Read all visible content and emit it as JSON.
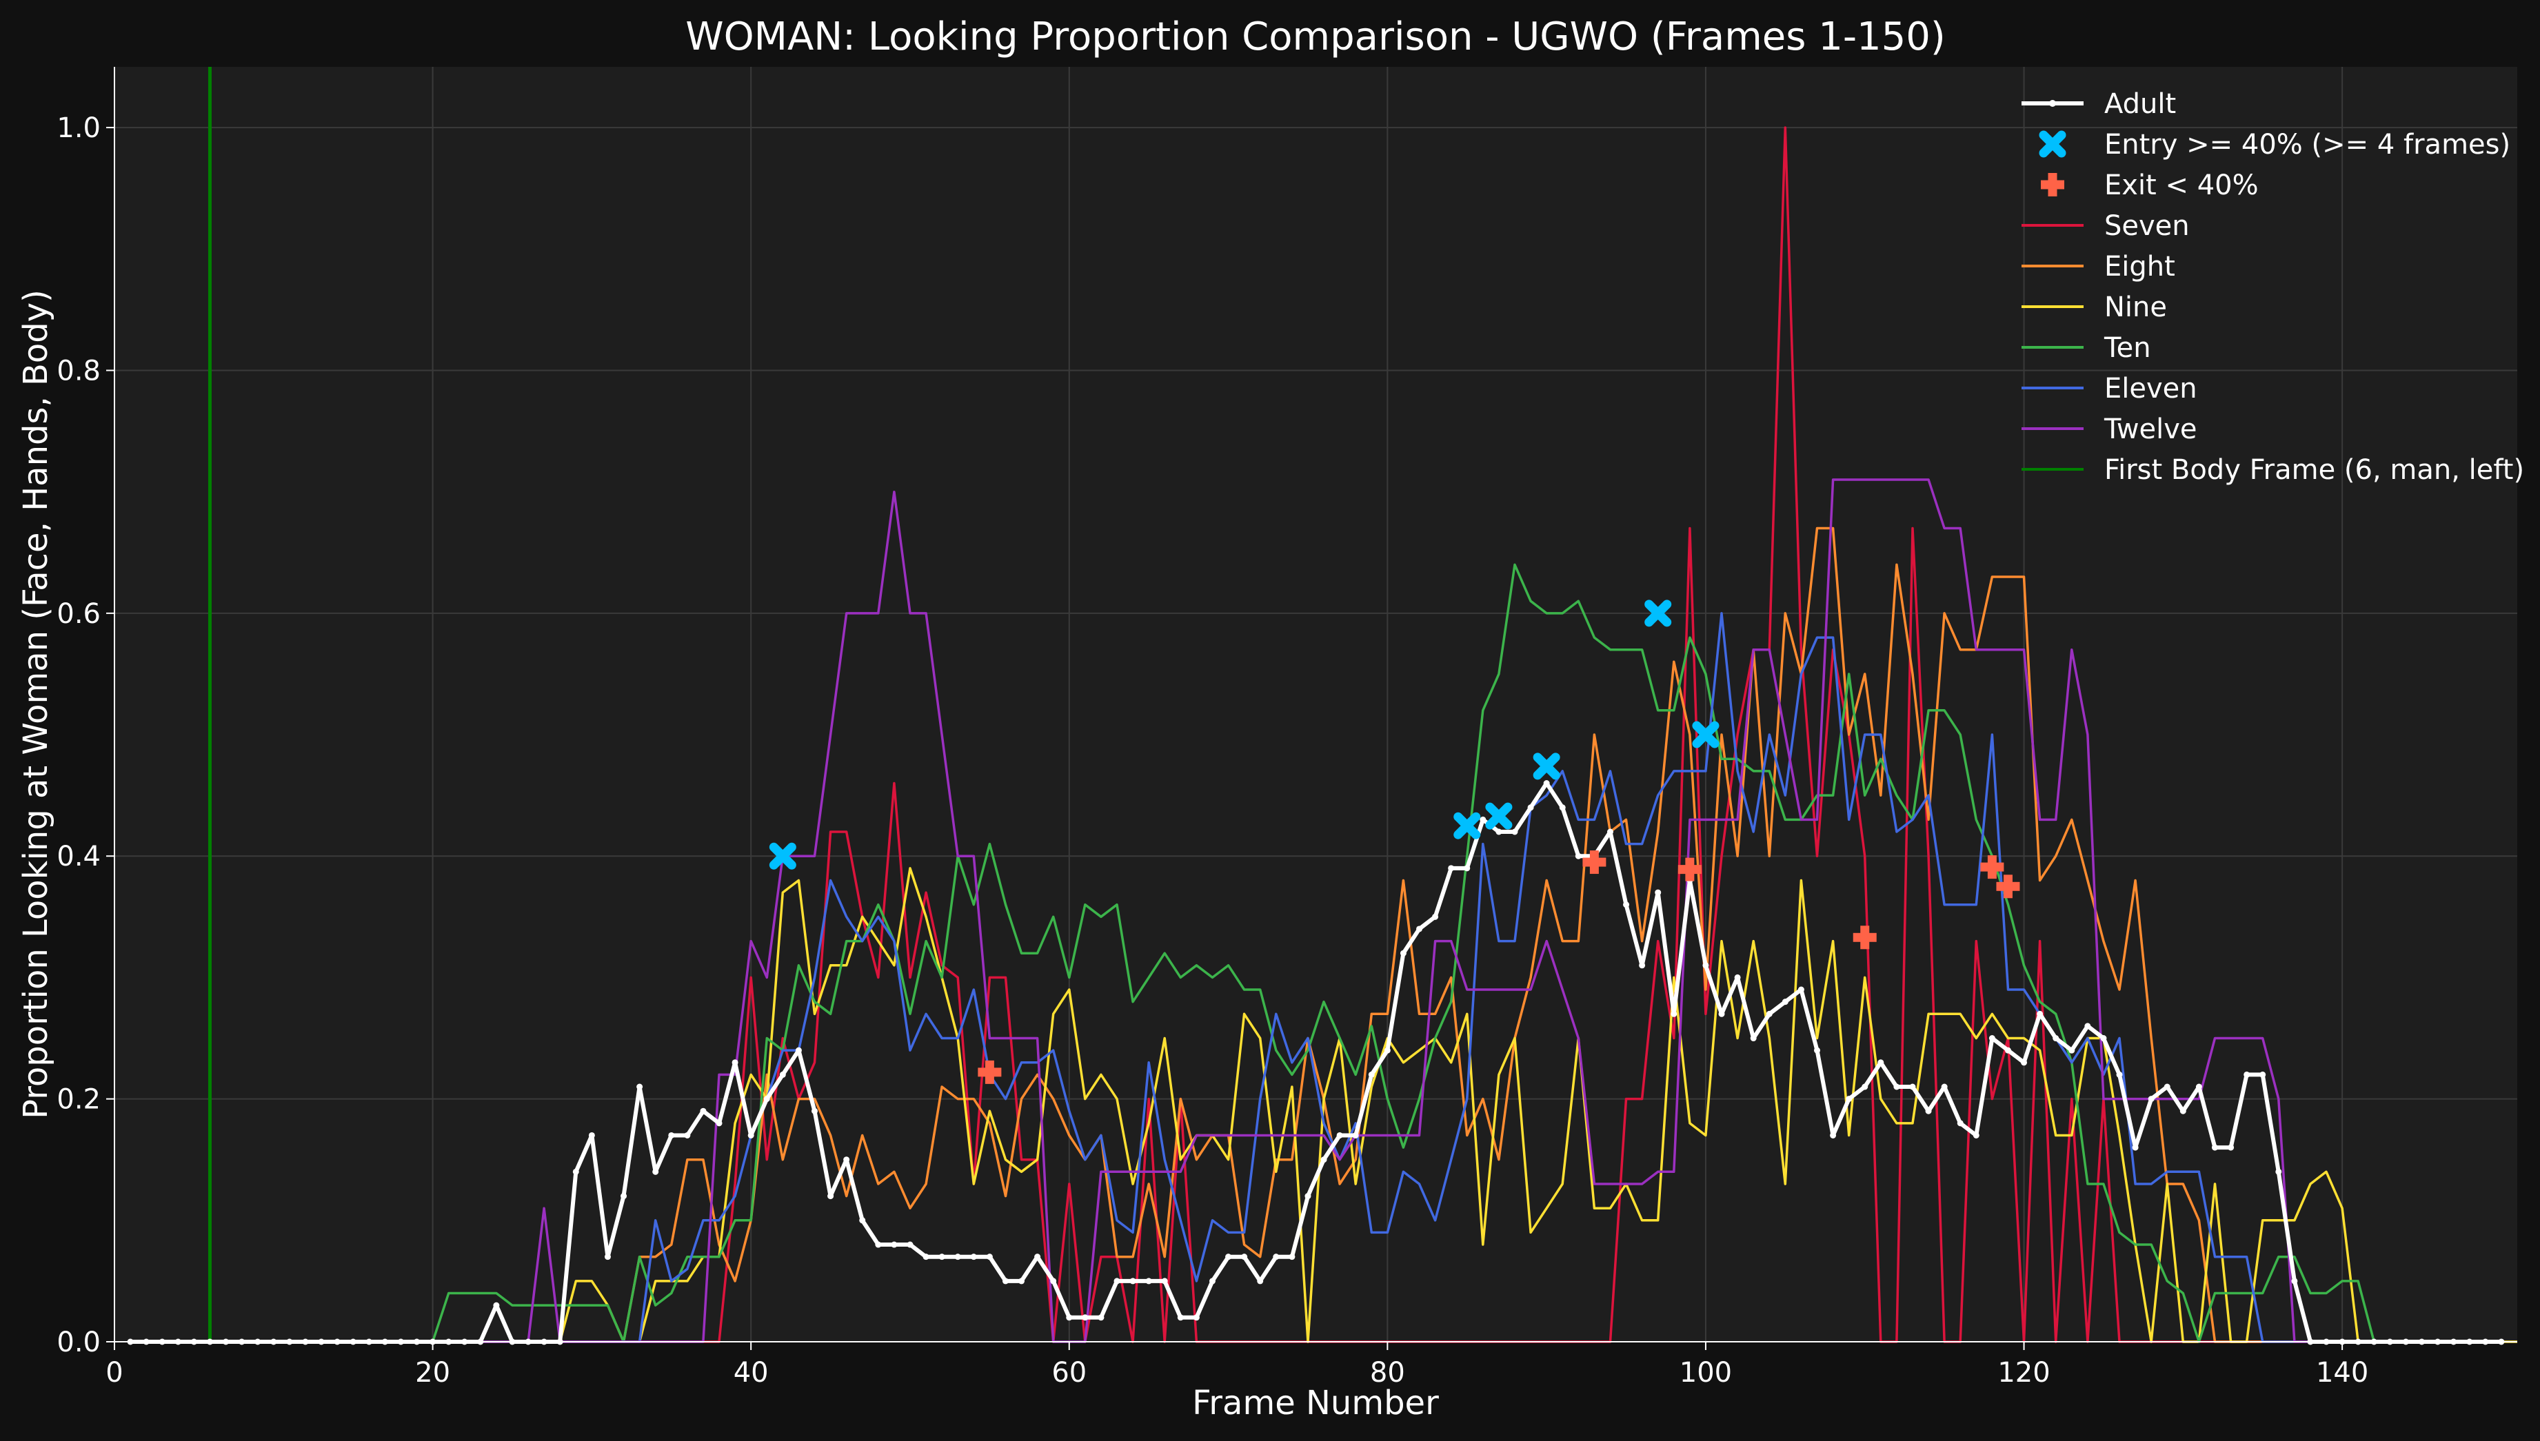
{
  "chart_data": {
    "type": "line",
    "title": "WOMAN: Looking Proportion Comparison - UGWO (Frames 1-150)",
    "xlabel": "Frame Number",
    "ylabel": "Proportion Looking at Woman (Face, Hands, Body)",
    "xlim": [
      0,
      151
    ],
    "ylim": [
      0,
      1.05
    ],
    "xticks": [
      0,
      20,
      40,
      60,
      80,
      100,
      120,
      140
    ],
    "xtick_labels": [
      "0",
      "20",
      "40",
      "60",
      "80",
      "100",
      "120",
      "140"
    ],
    "yticks": [
      0,
      0.2,
      0.4,
      0.6,
      0.8,
      1.0
    ],
    "ytick_labels": [
      "0.0",
      "0.2",
      "0.4",
      "0.6",
      "0.8",
      "1.0"
    ],
    "grid": true,
    "legend_position": "top-right",
    "x_start": 1,
    "background": "#1e1e1e",
    "series": [
      {
        "name": "Seven",
        "color": "#dc143c",
        "values": [
          0,
          0,
          0,
          0,
          0,
          0,
          0,
          0,
          0,
          0,
          0,
          0,
          0,
          0,
          0,
          0,
          0,
          0,
          0,
          0,
          0,
          0,
          0,
          0,
          0,
          0,
          0,
          0,
          0,
          0,
          0,
          0,
          0,
          0,
          0,
          0,
          0,
          0,
          0.13,
          0.3,
          0.15,
          0.25,
          0.2,
          0.23,
          0.42,
          0.42,
          0.35,
          0.3,
          0.46,
          0.3,
          0.37,
          0.31,
          0.3,
          0.13,
          0.3,
          0.3,
          0.15,
          0.15,
          0,
          0.13,
          0,
          0.07,
          0.07,
          0,
          0.2,
          0,
          0.2,
          0,
          0,
          0,
          0,
          0,
          0,
          0,
          0,
          0,
          0,
          0,
          0,
          0,
          0,
          0,
          0,
          0,
          0,
          0,
          0,
          0,
          0,
          0,
          0,
          0,
          0,
          0,
          0.2,
          0.2,
          0.33,
          0.25,
          0.67,
          0.27,
          0.4,
          0.5,
          0.57,
          0.57,
          1.0,
          0.57,
          0.4,
          0.57,
          0.5,
          0.4,
          0,
          0,
          0.67,
          0.4,
          0,
          0,
          0.33,
          0.2,
          0.25,
          0,
          0.33,
          0,
          0.2,
          0,
          0.2,
          0,
          0,
          0,
          0,
          0,
          0,
          0,
          0,
          0,
          0,
          0,
          0,
          0,
          0,
          0,
          0,
          0,
          0,
          0,
          0,
          0
        ]
      },
      {
        "name": "Eight",
        "color": "#ff8c30",
        "values": [
          0,
          0,
          0,
          0,
          0,
          0,
          0,
          0,
          0,
          0,
          0,
          0,
          0,
          0,
          0,
          0,
          0,
          0,
          0,
          0,
          0,
          0,
          0,
          0,
          0,
          0,
          0,
          0,
          0,
          0,
          0,
          0,
          0.07,
          0.07,
          0.08,
          0.15,
          0.15,
          0.08,
          0.05,
          0.1,
          0.22,
          0.15,
          0.2,
          0.2,
          0.17,
          0.12,
          0.17,
          0.13,
          0.14,
          0.11,
          0.13,
          0.21,
          0.2,
          0.2,
          0.18,
          0.12,
          0.2,
          0.22,
          0.2,
          0.17,
          0.15,
          0.17,
          0.07,
          0.07,
          0.13,
          0.07,
          0.2,
          0.15,
          0.17,
          0.17,
          0.08,
          0.07,
          0.15,
          0.15,
          0.25,
          0.2,
          0.13,
          0.15,
          0.27,
          0.27,
          0.38,
          0.27,
          0.27,
          0.3,
          0.17,
          0.2,
          0.15,
          0.25,
          0.3,
          0.38,
          0.33,
          0.33,
          0.5,
          0.42,
          0.43,
          0.33,
          0.42,
          0.56,
          0.5,
          0.29,
          0.5,
          0.4,
          0.57,
          0.4,
          0.6,
          0.55,
          0.67,
          0.67,
          0.5,
          0.55,
          0.45,
          0.64,
          0.55,
          0.43,
          0.6,
          0.57,
          0.57,
          0.63,
          0.63,
          0.63,
          0.38,
          0.4,
          0.43,
          0.38,
          0.33,
          0.29,
          0.38,
          0.25,
          0.13,
          0.13,
          0.1,
          0,
          0,
          0,
          0,
          0,
          0,
          0,
          0,
          0,
          0,
          0,
          0,
          0,
          0,
          0,
          0,
          0
        ]
      },
      {
        "name": "Nine",
        "color": "#ffe033",
        "values": [
          0,
          0,
          0,
          0,
          0,
          0,
          0,
          0,
          0,
          0,
          0,
          0,
          0,
          0,
          0,
          0,
          0,
          0,
          0,
          0,
          0,
          0,
          0,
          0,
          0,
          0,
          0,
          0,
          0.05,
          0.05,
          0.03,
          0,
          0,
          0.05,
          0.05,
          0.05,
          0.07,
          0.07,
          0.18,
          0.22,
          0.2,
          0.37,
          0.38,
          0.27,
          0.31,
          0.31,
          0.35,
          0.33,
          0.31,
          0.39,
          0.35,
          0.3,
          0.25,
          0.13,
          0.19,
          0.15,
          0.14,
          0.15,
          0.27,
          0.29,
          0.2,
          0.22,
          0.2,
          0.13,
          0.18,
          0.25,
          0.15,
          0.17,
          0.17,
          0.15,
          0.27,
          0.25,
          0.14,
          0.21,
          0,
          0.2,
          0.25,
          0.13,
          0.21,
          0.25,
          0.23,
          0.24,
          0.25,
          0.23,
          0.27,
          0.08,
          0.22,
          0.25,
          0.09,
          0.11,
          0.13,
          0.25,
          0.11,
          0.11,
          0.13,
          0.1,
          0.1,
          0.3,
          0.18,
          0.17,
          0.33,
          0.25,
          0.33,
          0.25,
          0.13,
          0.38,
          0.25,
          0.33,
          0.17,
          0.3,
          0.2,
          0.18,
          0.18,
          0.27,
          0.27,
          0.27,
          0.25,
          0.27,
          0.25,
          0.25,
          0.24,
          0.17,
          0.17,
          0.25,
          0.25,
          0.17,
          0.08,
          0,
          0.13,
          0,
          0,
          0.13,
          0,
          0,
          0.1,
          0.1,
          0.1,
          0.13,
          0.14,
          0.11,
          0,
          0,
          0,
          0,
          0,
          0,
          0,
          0,
          0,
          0,
          0
        ]
      },
      {
        "name": "Ten",
        "color": "#3cb44b",
        "values": [
          0,
          0,
          0,
          0,
          0,
          0,
          0,
          0,
          0,
          0,
          0,
          0,
          0,
          0,
          0,
          0,
          0,
          0,
          0,
          0,
          0.04,
          0.04,
          0.04,
          0.04,
          0.03,
          0.03,
          0.03,
          0.03,
          0.03,
          0.03,
          0.03,
          0,
          0.07,
          0.03,
          0.04,
          0.07,
          0.07,
          0.07,
          0.1,
          0.1,
          0.25,
          0.24,
          0.31,
          0.28,
          0.27,
          0.33,
          0.33,
          0.36,
          0.33,
          0.27,
          0.33,
          0.3,
          0.4,
          0.36,
          0.41,
          0.36,
          0.32,
          0.32,
          0.35,
          0.3,
          0.36,
          0.35,
          0.36,
          0.28,
          0.3,
          0.32,
          0.3,
          0.31,
          0.3,
          0.31,
          0.29,
          0.29,
          0.24,
          0.22,
          0.24,
          0.28,
          0.25,
          0.22,
          0.26,
          0.2,
          0.16,
          0.2,
          0.25,
          0.28,
          0.4,
          0.52,
          0.55,
          0.64,
          0.61,
          0.6,
          0.6,
          0.61,
          0.58,
          0.57,
          0.57,
          0.57,
          0.52,
          0.52,
          0.58,
          0.55,
          0.48,
          0.48,
          0.47,
          0.47,
          0.43,
          0.43,
          0.45,
          0.45,
          0.55,
          0.45,
          0.48,
          0.45,
          0.43,
          0.52,
          0.52,
          0.5,
          0.43,
          0.4,
          0.36,
          0.31,
          0.28,
          0.27,
          0.23,
          0.13,
          0.13,
          0.09,
          0.08,
          0.08,
          0.05,
          0.04,
          0,
          0.04,
          0.04,
          0.04,
          0.04,
          0.07,
          0.07,
          0.04,
          0.04,
          0.05,
          0.05,
          0,
          0,
          0,
          0,
          0,
          0,
          0,
          0,
          0
        ]
      },
      {
        "name": "Eleven",
        "color": "#4169e1",
        "values": [
          0,
          0,
          0,
          0,
          0,
          0,
          0,
          0,
          0,
          0,
          0,
          0,
          0,
          0,
          0,
          0,
          0,
          0,
          0,
          0,
          0,
          0,
          0,
          0,
          0,
          0,
          0,
          0,
          0,
          0,
          0,
          0,
          0,
          0.1,
          0.05,
          0.06,
          0.1,
          0.1,
          0.12,
          0.17,
          0.2,
          0.24,
          0.24,
          0.3,
          0.38,
          0.35,
          0.33,
          0.35,
          0.33,
          0.24,
          0.27,
          0.25,
          0.25,
          0.29,
          0.22,
          0.2,
          0.23,
          0.23,
          0.24,
          0.19,
          0.15,
          0.17,
          0.1,
          0.09,
          0.23,
          0.15,
          0.1,
          0.05,
          0.1,
          0.09,
          0.09,
          0.2,
          0.27,
          0.23,
          0.25,
          0.18,
          0.15,
          0.18,
          0.09,
          0.09,
          0.14,
          0.13,
          0.1,
          0.15,
          0.2,
          0.41,
          0.33,
          0.33,
          0.44,
          0.45,
          0.47,
          0.43,
          0.43,
          0.47,
          0.41,
          0.41,
          0.45,
          0.47,
          0.47,
          0.47,
          0.6,
          0.47,
          0.42,
          0.5,
          0.45,
          0.55,
          0.58,
          0.58,
          0.43,
          0.5,
          0.5,
          0.42,
          0.43,
          0.45,
          0.36,
          0.36,
          0.36,
          0.5,
          0.29,
          0.29,
          0.27,
          0.25,
          0.23,
          0.25,
          0.22,
          0.25,
          0.13,
          0.13,
          0.14,
          0.14,
          0.14,
          0.07,
          0.07,
          0.07,
          0,
          0,
          0,
          0,
          0,
          0,
          0,
          0,
          0,
          0,
          0,
          0,
          0
        ]
      },
      {
        "name": "Twelve",
        "color": "#9b30c0",
        "values": [
          0,
          0,
          0,
          0,
          0,
          0,
          0,
          0,
          0,
          0,
          0,
          0,
          0,
          0,
          0,
          0,
          0,
          0,
          0,
          0,
          0,
          0,
          0,
          0,
          0,
          0,
          0.11,
          0,
          0,
          0,
          0,
          0,
          0,
          0,
          0,
          0,
          0,
          0.22,
          0.22,
          0.33,
          0.3,
          0.4,
          0.4,
          0.4,
          0.5,
          0.6,
          0.6,
          0.6,
          0.7,
          0.6,
          0.6,
          0.5,
          0.4,
          0.4,
          0.25,
          0.25,
          0.25,
          0.25,
          0,
          0,
          0,
          0.14,
          0.14,
          0.14,
          0.14,
          0.14,
          0.14,
          0.17,
          0.17,
          0.17,
          0.17,
          0.17,
          0.17,
          0.17,
          0.17,
          0.17,
          0.15,
          0.17,
          0.17,
          0.17,
          0.17,
          0.17,
          0.33,
          0.33,
          0.29,
          0.29,
          0.29,
          0.29,
          0.29,
          0.33,
          0.29,
          0.25,
          0.13,
          0.13,
          0.13,
          0.13,
          0.14,
          0.14,
          0.43,
          0.43,
          0.43,
          0.43,
          0.57,
          0.57,
          0.5,
          0.43,
          0.43,
          0.71,
          0.71,
          0.71,
          0.71,
          0.71,
          0.71,
          0.71,
          0.67,
          0.67,
          0.57,
          0.57,
          0.57,
          0.57,
          0.43,
          0.43,
          0.57,
          0.5,
          0.2,
          0.2,
          0.2,
          0.2,
          0.2,
          0.2,
          0.2,
          0.25,
          0.25,
          0.25,
          0.25,
          0.2,
          0,
          0,
          0,
          0,
          0,
          0,
          0,
          0,
          0,
          0,
          0,
          0,
          0
        ]
      },
      {
        "name": "Adult",
        "color": "#ffffff",
        "marker": true,
        "values": [
          0,
          0,
          0,
          0,
          0,
          0,
          0,
          0,
          0,
          0,
          0,
          0,
          0,
          0,
          0,
          0,
          0,
          0,
          0,
          0,
          0,
          0,
          0,
          0.03,
          0,
          0,
          0,
          0,
          0.14,
          0.17,
          0.07,
          0.12,
          0.21,
          0.14,
          0.17,
          0.17,
          0.19,
          0.18,
          0.23,
          0.17,
          0.2,
          0.22,
          0.24,
          0.19,
          0.12,
          0.15,
          0.1,
          0.08,
          0.08,
          0.08,
          0.07,
          0.07,
          0.07,
          0.07,
          0.07,
          0.05,
          0.05,
          0.07,
          0.05,
          0.02,
          0.02,
          0.02,
          0.05,
          0.05,
          0.05,
          0.05,
          0.02,
          0.02,
          0.05,
          0.07,
          0.07,
          0.05,
          0.07,
          0.07,
          0.12,
          0.15,
          0.17,
          0.17,
          0.22,
          0.24,
          0.32,
          0.34,
          0.35,
          0.39,
          0.39,
          0.43,
          0.42,
          0.42,
          0.44,
          0.46,
          0.44,
          0.4,
          0.4,
          0.42,
          0.36,
          0.31,
          0.37,
          0.27,
          0.38,
          0.31,
          0.27,
          0.3,
          0.25,
          0.27,
          0.28,
          0.29,
          0.24,
          0.17,
          0.2,
          0.21,
          0.23,
          0.21,
          0.21,
          0.19,
          0.21,
          0.18,
          0.17,
          0.25,
          0.24,
          0.23,
          0.27,
          0.25,
          0.24,
          0.26,
          0.25,
          0.22,
          0.16,
          0.2,
          0.21,
          0.19,
          0.21,
          0.16,
          0.16,
          0.22,
          0.22,
          0.14,
          0.05,
          0,
          0,
          0,
          0,
          0,
          0,
          0,
          0,
          0,
          0,
          0,
          0,
          0
        ]
      }
    ],
    "entry_points": {
      "name": "Entry >= 40% (>= 4 frames)",
      "color": "#00bfff",
      "points": [
        [
          42,
          0.4
        ],
        [
          85,
          0.425
        ],
        [
          87,
          0.433
        ],
        [
          90,
          0.474
        ],
        [
          97,
          0.6
        ],
        [
          100,
          0.5
        ]
      ]
    },
    "exit_points": {
      "name": "Exit < 40%",
      "color": "#ff6347",
      "points": [
        [
          55,
          0.222
        ],
        [
          93,
          0.395
        ],
        [
          99,
          0.389
        ],
        [
          110,
          0.333
        ],
        [
          118,
          0.391
        ],
        [
          119,
          0.375
        ]
      ]
    },
    "vertical_line": {
      "name": "First Body Frame (6, man, left)",
      "x": 6,
      "color": "#008000"
    },
    "legend_entries": [
      {
        "label": "Adult",
        "kind": "line-marker",
        "color": "#ffffff"
      },
      {
        "label": "Entry >= 40% (>= 4 frames)",
        "kind": "x-marker",
        "color": "#00bfff"
      },
      {
        "label": "Exit < 40%",
        "kind": "plus-marker",
        "color": "#ff6347"
      },
      {
        "label": "Seven",
        "kind": "line",
        "color": "#dc143c"
      },
      {
        "label": "Eight",
        "kind": "line",
        "color": "#ff8c30"
      },
      {
        "label": "Nine",
        "kind": "line",
        "color": "#ffe033"
      },
      {
        "label": "Ten",
        "kind": "line",
        "color": "#3cb44b"
      },
      {
        "label": "Eleven",
        "kind": "line",
        "color": "#4169e1"
      },
      {
        "label": "Twelve",
        "kind": "line",
        "color": "#9b30c0"
      },
      {
        "label": "First Body Frame (6, man, left)",
        "kind": "line",
        "color": "#008000"
      }
    ]
  }
}
